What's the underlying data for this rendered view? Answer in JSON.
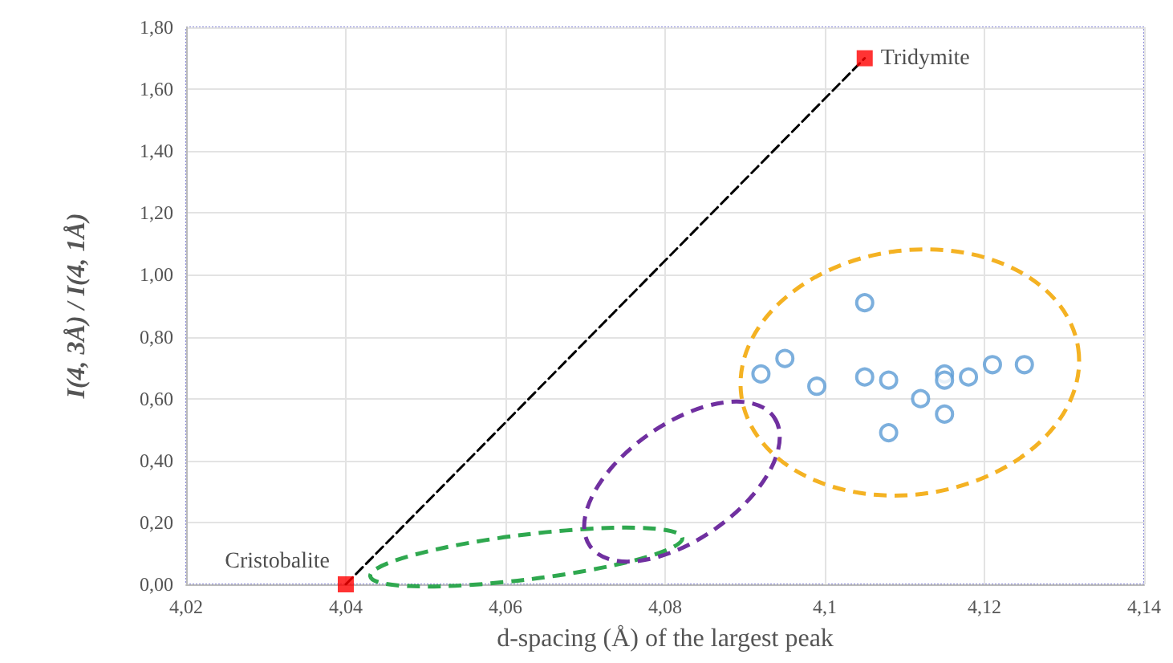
{
  "chart_data": {
    "type": "scatter",
    "xlabel": "d-spacing (Å) of the largest peak",
    "ylabel": "I(4, 3Å) / I(4, 1Å)",
    "xlim": [
      4.02,
      4.14
    ],
    "xticks": [
      {
        "value": 4.02,
        "label": "4,02"
      },
      {
        "value": 4.04,
        "label": "4,04"
      },
      {
        "value": 4.06,
        "label": "4,06"
      },
      {
        "value": 4.08,
        "label": "4,08"
      },
      {
        "value": 4.1,
        "label": "4,1"
      },
      {
        "value": 4.12,
        "label": "4,12"
      },
      {
        "value": 4.14,
        "label": "4,14"
      }
    ],
    "ylim": [
      0,
      1.8
    ],
    "yticks": [
      {
        "value": 0,
        "label": "0,00"
      },
      {
        "value": 0.2,
        "label": "0,20"
      },
      {
        "value": 0.4,
        "label": "0,40"
      },
      {
        "value": 0.6,
        "label": "0,60"
      },
      {
        "value": 0.8,
        "label": "0,80"
      },
      {
        "value": 1,
        "label": "1,00"
      },
      {
        "value": 1.2,
        "label": "1,20"
      },
      {
        "value": 1.4,
        "label": "1,40"
      },
      {
        "value": 1.6,
        "label": "1,60"
      },
      {
        "value": 1.8,
        "label": "1,80"
      }
    ],
    "grid": true,
    "series": [
      {
        "type": "line",
        "color": "#000000",
        "line_style": "dashed",
        "marker": "none",
        "x": [
          4.04,
          4.105
        ],
        "values": [
          0,
          1.7
        ]
      },
      {
        "color": "#5b9bd5",
        "marker": "circle",
        "x": [
          4.092,
          4.095,
          4.099,
          4.105,
          4.105,
          4.108,
          4.108,
          4.112,
          4.115,
          4.115,
          4.115,
          4.118,
          4.121,
          4.125
        ],
        "values": [
          0.68,
          0.73,
          0.64,
          0.91,
          0.67,
          0.66,
          0.49,
          0.6,
          0.68,
          0.66,
          0.55,
          0.67,
          0.71,
          0.71
        ]
      },
      {
        "color": "#ff0000",
        "marker": "square",
        "x": [
          4.04,
          4.105
        ],
        "values": [
          0,
          1.7
        ]
      }
    ],
    "annotations": [
      {
        "text": "Cristobalite",
        "x": 4.04,
        "y": 0
      },
      {
        "text": "Tridymite",
        "x": 4.105,
        "y": 1.7
      }
    ]
  }
}
